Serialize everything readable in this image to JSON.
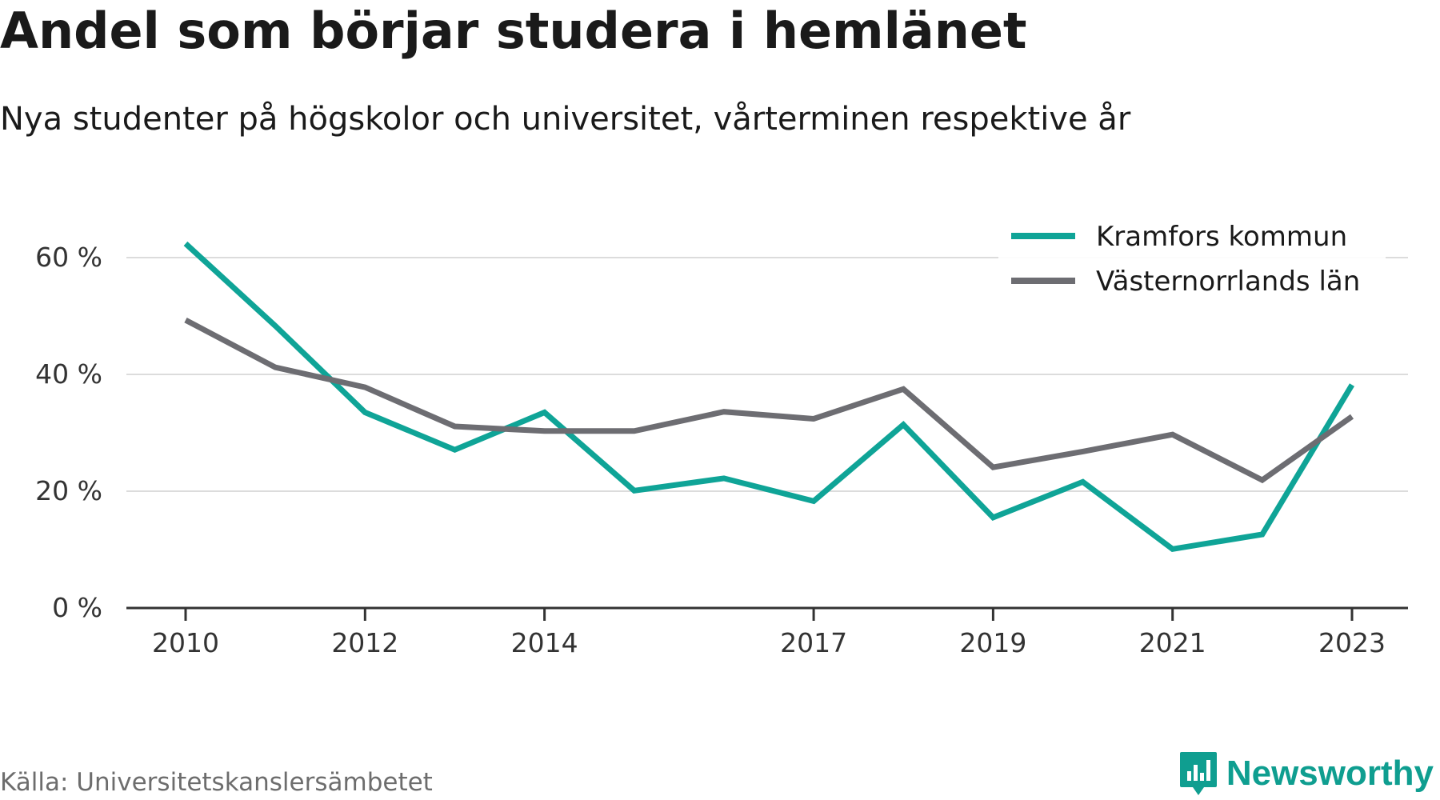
{
  "title": "Andel som börjar studera i hemlänet",
  "subtitle": "Nya studenter på högskolor och universitet, vårterminen respektive år",
  "source": "Källa: Universitetskanslersämbetet",
  "brand": {
    "name": "Newsworthy",
    "icon": "newsworthy-logo-icon",
    "color": "#0f9e90"
  },
  "chart_data": {
    "type": "line",
    "title": "Andel som börjar studera i hemlänet",
    "subtitle": "Nya studenter på högskolor och universitet, vårterminen respektive år",
    "x": [
      2010,
      2011,
      2012,
      2013,
      2014,
      2015,
      2016,
      2017,
      2018,
      2019,
      2020,
      2021,
      2022,
      2023
    ],
    "x_tick_values": [
      2010,
      2012,
      2014,
      2017,
      2019,
      2021,
      2023
    ],
    "x_tick_labels": [
      "2010",
      "2012",
      "2014",
      "2017",
      "2019",
      "2021",
      "2023"
    ],
    "y_tick_values": [
      0,
      20,
      40,
      60
    ],
    "y_tick_labels": [
      "0 %",
      "20 %",
      "40 %",
      "60 %"
    ],
    "ylim": [
      0,
      70
    ],
    "grid": "horizontal",
    "legend_position": "top-right",
    "series": [
      {
        "name": "Kramfors kommun",
        "color": "#0fa497",
        "values": [
          62.4,
          48.3,
          33.5,
          27.1,
          33.5,
          20.1,
          22.2,
          18.3,
          31.4,
          15.5,
          21.6,
          10.1,
          12.6,
          38.2
        ]
      },
      {
        "name": "Västernorrlands län",
        "color": "#6d6d72",
        "values": [
          49.3,
          41.2,
          37.8,
          31.1,
          30.3,
          30.3,
          33.6,
          32.4,
          37.5,
          24.1,
          26.8,
          29.7,
          21.9,
          32.8
        ]
      }
    ]
  }
}
